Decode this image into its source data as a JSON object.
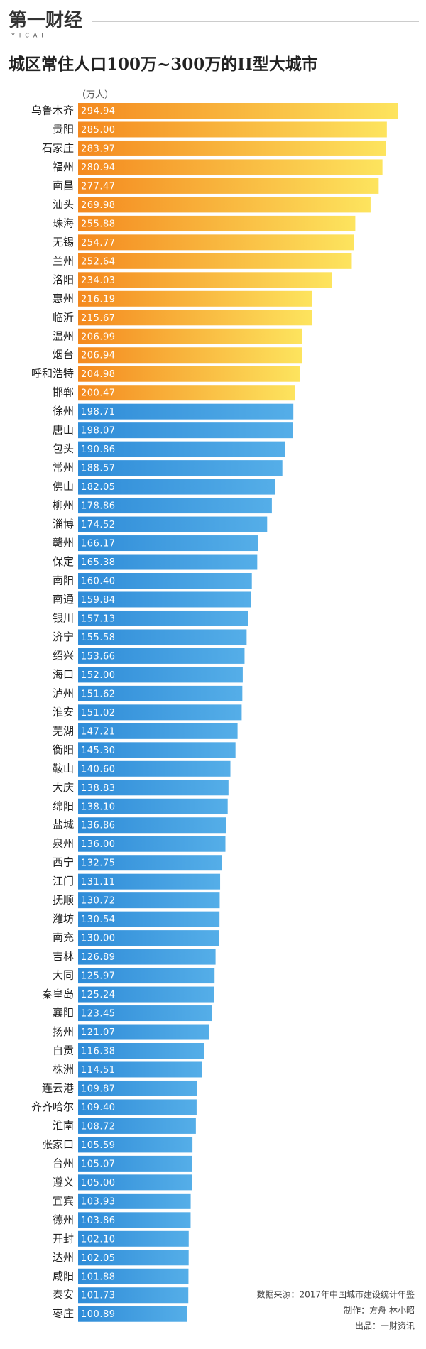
{
  "logo": {
    "text": "第一财经",
    "sub": "YICAI"
  },
  "chart_data": {
    "type": "hbar",
    "title": "城区常住人口100万~300万的II型大城市",
    "unit": "（万人）",
    "series": [
      {
        "color": "#f4891f",
        "color_end": "#fde45e",
        "categories": [
          "乌鲁木齐",
          "贵阳",
          "石家庄",
          "福州",
          "南昌",
          "汕头",
          "珠海",
          "无锡",
          "兰州",
          "洛阳",
          "惠州",
          "临沂",
          "温州",
          "烟台",
          "呼和浩特",
          "邯郸"
        ],
        "values": [
          294.94,
          285.0,
          283.97,
          280.94,
          277.47,
          269.98,
          255.88,
          254.77,
          252.64,
          234.03,
          216.19,
          215.67,
          206.99,
          206.94,
          204.98,
          200.47
        ],
        "value_labels": [
          "294.94",
          "285.00",
          "283.97",
          "280.94",
          "277.47",
          "269.98",
          "255.88",
          "254.77",
          "252.64",
          "234.03",
          "216.19",
          "215.67",
          "206.99",
          "206.94",
          "204.98",
          "200.47"
        ]
      },
      {
        "color": "#2f8cd8",
        "color_end": "#55aee8",
        "categories": [
          "徐州",
          "唐山",
          "包头",
          "常州",
          "佛山",
          "柳州",
          "淄博",
          "赣州",
          "保定",
          "南阳",
          "南通",
          "银川",
          "济宁",
          "绍兴",
          "海口",
          "泸州",
          "淮安",
          "芜湖",
          "衡阳",
          "鞍山",
          "大庆",
          "绵阳",
          "盐城",
          "泉州",
          "西宁",
          "江门",
          "抚顺",
          "潍坊",
          "南充",
          "吉林",
          "大同",
          "秦皇岛",
          "襄阳",
          "扬州",
          "自贡",
          "株洲",
          "连云港",
          "齐齐哈尔",
          "淮南",
          "张家口",
          "台州",
          "遵义",
          "宜宾",
          "德州",
          "开封",
          "达州",
          "咸阳",
          "泰安",
          "枣庄"
        ],
        "values": [
          198.71,
          198.07,
          190.86,
          188.57,
          182.05,
          178.86,
          174.52,
          166.17,
          165.38,
          160.4,
          159.84,
          157.13,
          155.58,
          153.66,
          152.0,
          151.62,
          151.02,
          147.21,
          145.3,
          140.6,
          138.83,
          138.1,
          136.86,
          136.0,
          132.75,
          131.11,
          130.72,
          130.54,
          130.0,
          126.89,
          125.97,
          125.24,
          123.45,
          121.07,
          116.38,
          114.51,
          109.87,
          109.4,
          108.72,
          105.59,
          105.07,
          105.0,
          103.93,
          103.86,
          102.1,
          102.05,
          101.88,
          101.73,
          100.89
        ],
        "value_labels": [
          "198.71",
          "198.07",
          "190.86",
          "188.57",
          "182.05",
          "178.86",
          "174.52",
          "166.17",
          "165.38",
          "160.40",
          "159.84",
          "157.13",
          "155.58",
          "153.66",
          "152.00",
          "151.62",
          "151.02",
          "147.21",
          "145.30",
          "140.60",
          "138.83",
          "138.10",
          "136.86",
          "136.00",
          "132.75",
          "131.11",
          "130.72",
          "130.54",
          "130.00",
          "126.89",
          "125.97",
          "125.24",
          "123.45",
          "121.07",
          "116.38",
          "114.51",
          "109.87",
          "109.40",
          "108.72",
          "105.59",
          "105.07",
          "105.00",
          "103.93",
          "103.86",
          "102.10",
          "102.05",
          "101.88",
          "101.73",
          "100.89"
        ]
      }
    ]
  },
  "footer": {
    "source": "数据来源：2017年中国城市建设统计年鉴",
    "maker": "制作：方舟  林小昭",
    "producer": "出品：一财资讯"
  }
}
